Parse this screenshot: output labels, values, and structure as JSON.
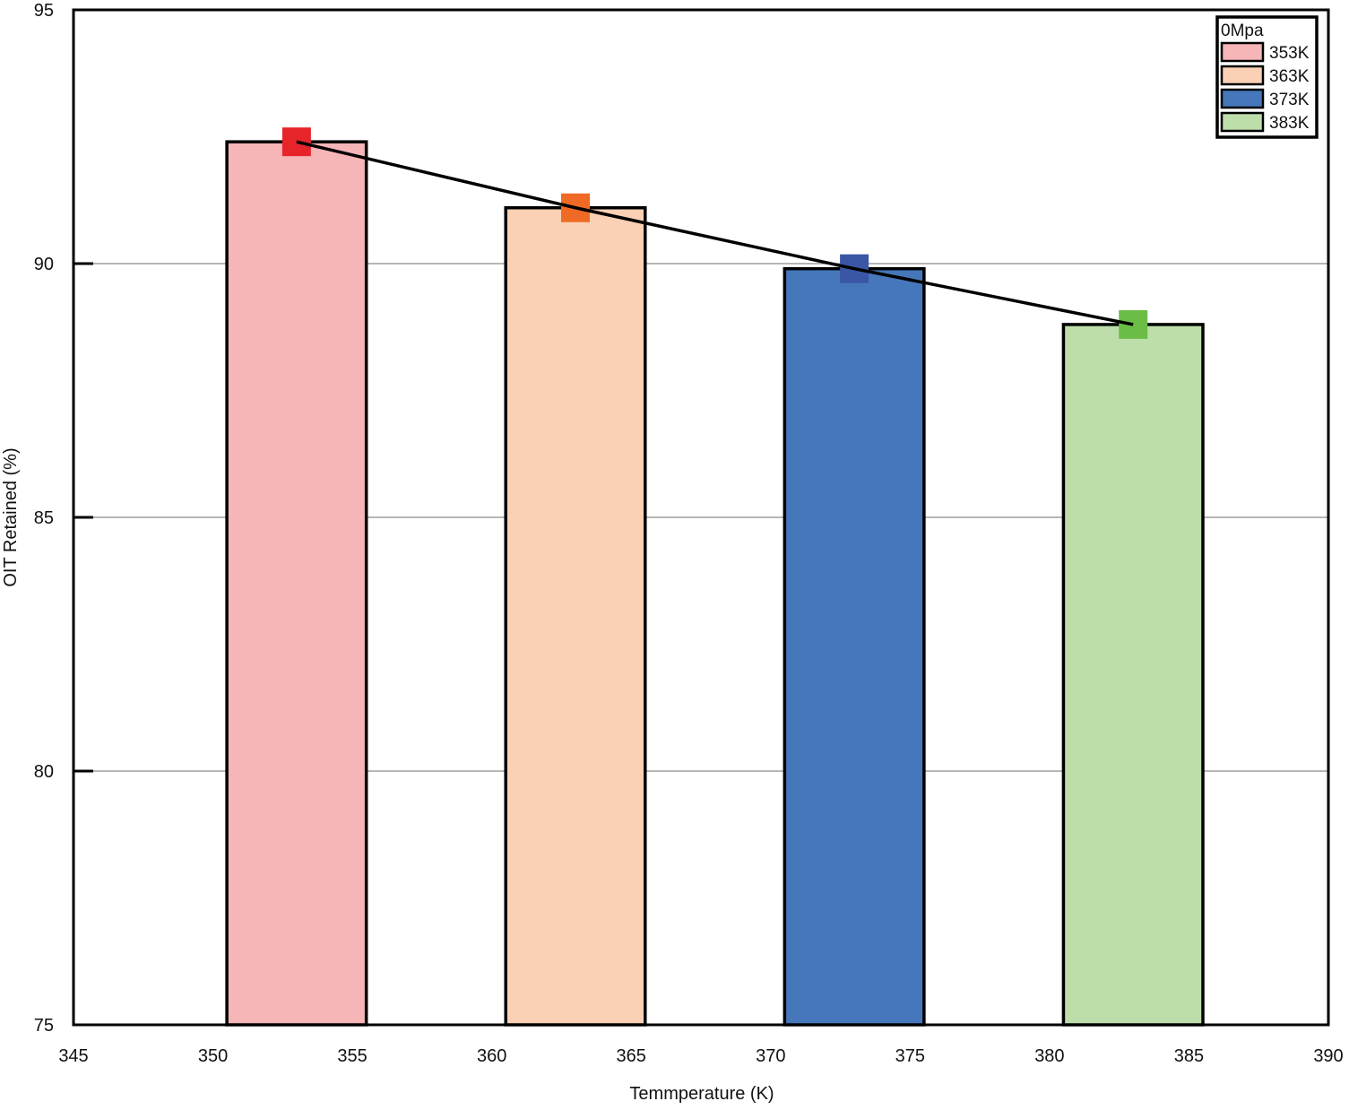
{
  "chart_data": {
    "type": "bar",
    "title": "",
    "xlabel": "Temmperature (K)",
    "ylabel": "OIT Retained (%)",
    "xlim": [
      345,
      390
    ],
    "ylim": [
      75,
      95
    ],
    "xticks": [
      345,
      350,
      355,
      360,
      365,
      370,
      375,
      380,
      385,
      390
    ],
    "yticks": [
      75,
      80,
      85,
      90,
      95
    ],
    "grid": {
      "horizontal": true,
      "vertical": false
    },
    "bar_width": 5,
    "legend": {
      "title": "0Mpa",
      "placement": "top-right",
      "entries": [
        "353K",
        "363K",
        "373K",
        "383K"
      ]
    },
    "series": [
      {
        "type": "bar",
        "x": [
          353,
          363,
          373,
          383
        ],
        "values": [
          92.4,
          91.1,
          89.9,
          88.8
        ],
        "colors": [
          "#f6b5b7",
          "#fad1b5",
          "#4577ba",
          "#bddeab"
        ]
      },
      {
        "type": "line",
        "x": [
          353,
          363,
          373,
          383
        ],
        "values": [
          92.4,
          91.1,
          89.9,
          88.8
        ],
        "line_color": "#000000",
        "marker": "square",
        "marker_colors": [
          "#e8242b",
          "#ef6a24",
          "#3a56a5",
          "#6bbd45"
        ]
      }
    ]
  }
}
